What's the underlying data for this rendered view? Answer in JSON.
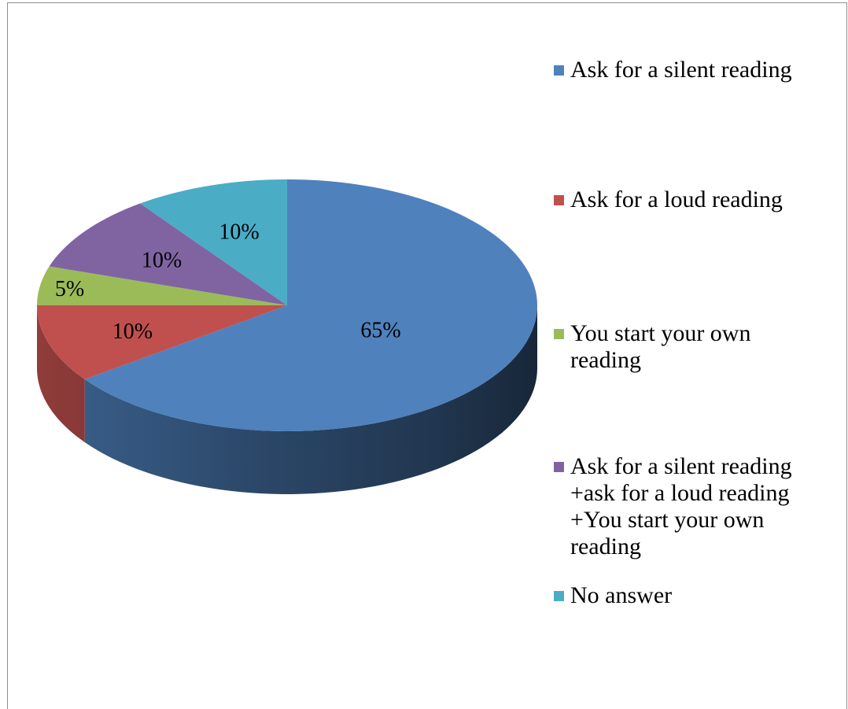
{
  "chart_data": {
    "type": "pie",
    "style": "3d",
    "title": "",
    "legend_position": "right",
    "slices": [
      {
        "label": "Ask for a silent reading",
        "value": 65,
        "display": "65%",
        "color": "#4f81bd"
      },
      {
        "label": "Ask for a loud reading",
        "value": 10,
        "display": "10%",
        "color": "#c0504d"
      },
      {
        "label": "You start your own\nreading",
        "value": 5,
        "display": "5%",
        "color": "#9bbb59"
      },
      {
        "label": "Ask for a silent reading\n+ask for a loud reading\n+You start your own\nreading",
        "value": 10,
        "display": "10%",
        "color": "#8064a2"
      },
      {
        "label": "No answer",
        "value": 10,
        "display": "10%",
        "color": "#4bacc6"
      }
    ]
  }
}
